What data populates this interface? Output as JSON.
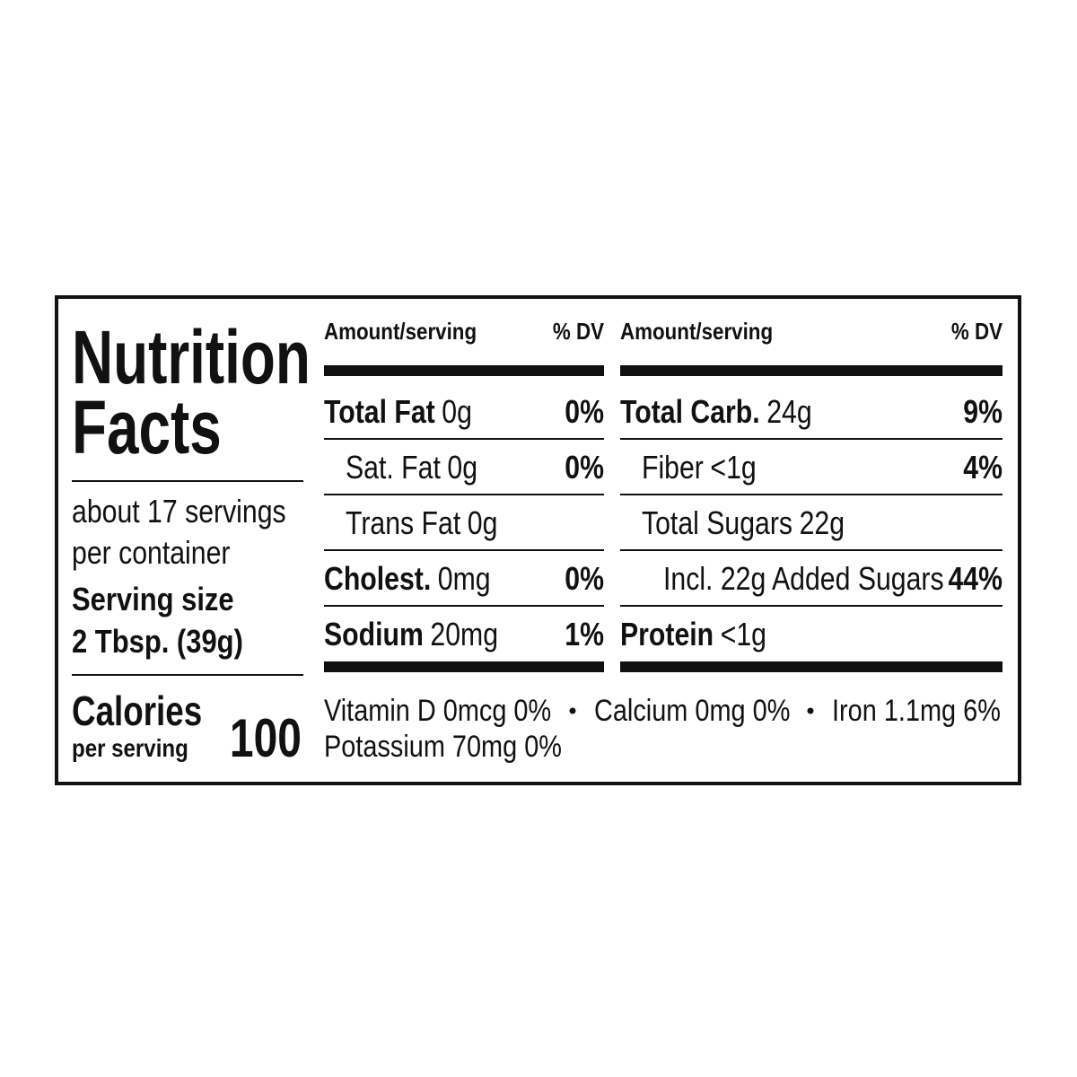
{
  "title": [
    "Nutrition",
    "Facts"
  ],
  "servings_per_container": [
    "about 17 servings",
    "per container"
  ],
  "serving_size_label": "Serving size",
  "serving_size": "2 Tbsp. (39g)",
  "calories_label": "Calories",
  "calories_sublabel": "per serving",
  "calories": 100,
  "columns": [
    {
      "header_amount": "Amount/serving",
      "header_dv": "% DV",
      "rows": [
        {
          "name": "Total Fat",
          "amount": "0g",
          "dv": "0%",
          "bold": true,
          "indent": 0
        },
        {
          "name": "Sat. Fat",
          "amount": "0g",
          "dv": "0%",
          "bold": false,
          "indent": 1
        },
        {
          "name": "Trans Fat",
          "amount": "0g",
          "bold": false,
          "indent": 1
        },
        {
          "name": "Cholest.",
          "amount": "0mg",
          "dv": "0%",
          "bold": true,
          "indent": 0
        },
        {
          "name": "Sodium",
          "amount": "20mg",
          "dv": "1%",
          "bold": true,
          "indent": 0
        }
      ]
    },
    {
      "header_amount": "Amount/serving",
      "header_dv": "% DV",
      "rows": [
        {
          "name": "Total Carb.",
          "amount": "24g",
          "dv": "9%",
          "bold": true,
          "indent": 0
        },
        {
          "name": "Fiber",
          "amount": "<1g",
          "dv": "4%",
          "bold": false,
          "indent": 1
        },
        {
          "name": "Total Sugars",
          "amount": "22g",
          "bold": false,
          "indent": 1
        },
        {
          "name": "Incl. 22g Added Sugars",
          "dv": "44%",
          "bold": false,
          "indent": 2
        },
        {
          "name": "Protein",
          "amount": "<1g",
          "bold": true,
          "indent": 0
        }
      ]
    }
  ],
  "footer": [
    [
      "Vitamin D 0mcg 0%",
      "Calcium 0mg 0%",
      "Iron 1.1mg 6%"
    ],
    [
      "Potassium 70mg 0%"
    ]
  ]
}
